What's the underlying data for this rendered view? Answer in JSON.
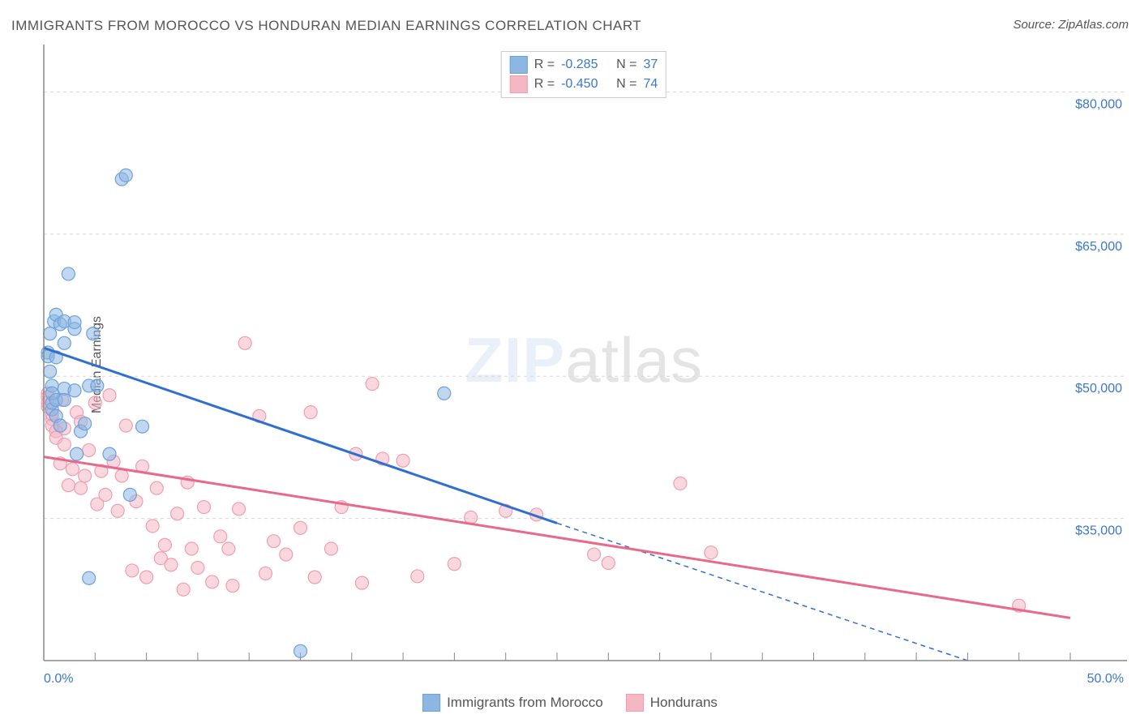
{
  "title": "IMMIGRANTS FROM MOROCCO VS HONDURAN MEDIAN EARNINGS CORRELATION CHART",
  "source": "Source: ZipAtlas.com",
  "watermark_zip": "ZIP",
  "watermark_atlas": "atlas",
  "ylabel": "Median Earnings",
  "chart": {
    "type": "scatter",
    "background": "#ffffff",
    "grid_color": "#d8d8d8",
    "grid_dash": "4,4",
    "axis_color": "#888888",
    "xlim": [
      0,
      50
    ],
    "ylim": [
      20000,
      85000
    ],
    "x_unit_suffix": "%",
    "y_prefix": "$",
    "x_tick_start": 0,
    "x_tick_step": 2.5,
    "x_tick_count": 21,
    "x_tick_labels_shown": {
      "first": "0.0%",
      "last": "50.0%"
    },
    "y_tick_step": 15000,
    "y_tick_start": 35000,
    "y_tick_count": 4,
    "y_tick_labels": [
      "$35,000",
      "$50,000",
      "$65,000",
      "$80,000"
    ],
    "marker_radius": 8,
    "marker_opacity": 0.55,
    "trend_line_width": 3,
    "series": [
      {
        "name": "Immigrants from Morocco",
        "color": "#8db6e2",
        "stroke": "#6aa2db",
        "line_color": "#2f6fd0",
        "R": "-0.285",
        "N": "37",
        "trend": {
          "x1": 0,
          "y1": 53000,
          "x2": 25,
          "y2": 34500,
          "extend_x2": 45,
          "extend_y2": 20000
        },
        "points": [
          [
            0.2,
            52500
          ],
          [
            0.2,
            52100
          ],
          [
            0.3,
            54500
          ],
          [
            0.3,
            50500
          ],
          [
            0.4,
            49000
          ],
          [
            0.4,
            46500
          ],
          [
            0.4,
            47200
          ],
          [
            0.4,
            48200
          ],
          [
            0.5,
            55800
          ],
          [
            0.6,
            52000
          ],
          [
            0.6,
            47500
          ],
          [
            0.6,
            45800
          ],
          [
            0.6,
            56500
          ],
          [
            0.8,
            55500
          ],
          [
            0.8,
            44800
          ],
          [
            1.0,
            53500
          ],
          [
            1.0,
            55800
          ],
          [
            1.0,
            48700
          ],
          [
            1.0,
            47500
          ],
          [
            1.2,
            60800
          ],
          [
            1.5,
            55000
          ],
          [
            1.5,
            55700
          ],
          [
            1.5,
            48500
          ],
          [
            1.6,
            41800
          ],
          [
            1.8,
            44200
          ],
          [
            2.0,
            45000
          ],
          [
            2.2,
            49000
          ],
          [
            2.2,
            28700
          ],
          [
            2.4,
            54500
          ],
          [
            2.6,
            49000
          ],
          [
            3.2,
            41800
          ],
          [
            3.8,
            70800
          ],
          [
            4.0,
            71200
          ],
          [
            4.2,
            37500
          ],
          [
            4.8,
            44700
          ],
          [
            12.5,
            21000
          ],
          [
            19.5,
            48200
          ]
        ]
      },
      {
        "name": "Hondurans",
        "color": "#f4b7c4",
        "stroke": "#ef9eb1",
        "line_color": "#e86a8a",
        "R": "-0.450",
        "N": "74",
        "trend": {
          "x1": 0,
          "y1": 41500,
          "x2": 50,
          "y2": 24500
        },
        "points": [
          [
            0.2,
            48200
          ],
          [
            0.2,
            46800
          ],
          [
            0.2,
            47800
          ],
          [
            0.2,
            47200
          ],
          [
            0.4,
            45500
          ],
          [
            0.4,
            44800
          ],
          [
            0.4,
            46000
          ],
          [
            0.6,
            44200
          ],
          [
            0.6,
            43500
          ],
          [
            0.8,
            40800
          ],
          [
            0.9,
            47500
          ],
          [
            1.0,
            42800
          ],
          [
            1.0,
            44500
          ],
          [
            1.2,
            38500
          ],
          [
            1.4,
            40200
          ],
          [
            1.6,
            46200
          ],
          [
            1.8,
            38200
          ],
          [
            1.8,
            45200
          ],
          [
            2.0,
            39500
          ],
          [
            2.2,
            42200
          ],
          [
            2.5,
            47200
          ],
          [
            2.6,
            36500
          ],
          [
            2.8,
            40000
          ],
          [
            3.0,
            37500
          ],
          [
            3.2,
            48000
          ],
          [
            3.4,
            41000
          ],
          [
            3.6,
            35800
          ],
          [
            3.8,
            39500
          ],
          [
            4.0,
            44800
          ],
          [
            4.3,
            29500
          ],
          [
            4.5,
            36800
          ],
          [
            4.8,
            40500
          ],
          [
            5.0,
            28800
          ],
          [
            5.3,
            34200
          ],
          [
            5.5,
            38200
          ],
          [
            5.7,
            30800
          ],
          [
            5.9,
            32200
          ],
          [
            6.2,
            30100
          ],
          [
            6.5,
            35500
          ],
          [
            6.8,
            27500
          ],
          [
            7.0,
            38800
          ],
          [
            7.2,
            31800
          ],
          [
            7.5,
            29800
          ],
          [
            7.8,
            36200
          ],
          [
            8.2,
            28300
          ],
          [
            8.6,
            33100
          ],
          [
            9.0,
            31800
          ],
          [
            9.2,
            27900
          ],
          [
            9.5,
            36000
          ],
          [
            9.8,
            53500
          ],
          [
            10.5,
            45800
          ],
          [
            10.8,
            29200
          ],
          [
            11.2,
            32600
          ],
          [
            11.8,
            31200
          ],
          [
            12.5,
            34000
          ],
          [
            13.0,
            46200
          ],
          [
            13.2,
            28800
          ],
          [
            14.0,
            31800
          ],
          [
            14.5,
            36200
          ],
          [
            15.2,
            41800
          ],
          [
            15.5,
            28200
          ],
          [
            16.0,
            49200
          ],
          [
            16.5,
            41300
          ],
          [
            17.5,
            41100
          ],
          [
            18.2,
            28900
          ],
          [
            20.0,
            30200
          ],
          [
            20.8,
            35100
          ],
          [
            22.5,
            35800
          ],
          [
            24.0,
            35400
          ],
          [
            26.8,
            31200
          ],
          [
            27.5,
            30300
          ],
          [
            31.0,
            38700
          ],
          [
            32.5,
            31400
          ],
          [
            47.5,
            25800
          ]
        ]
      }
    ]
  },
  "legend_top": {
    "R_label": "R  =",
    "N_label": "N  ="
  },
  "legend_bottom_labels": [
    "Immigrants from Morocco",
    "Hondurans"
  ]
}
